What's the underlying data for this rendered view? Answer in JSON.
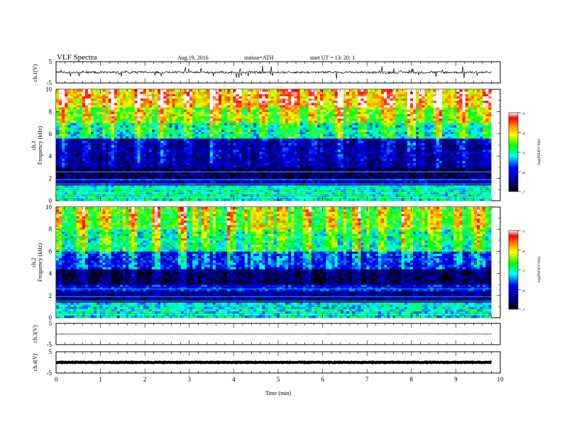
{
  "header": {
    "title": "VLF  Spectra",
    "date": "Aug.19, 2016",
    "station": "station=ATH",
    "start": "start  UT  =   13: 20: 1"
  },
  "chart_data": {
    "type": "heatmap",
    "xlabel": "Time  (min)",
    "xlim": [
      0,
      10
    ],
    "xticks": [
      "0",
      "1",
      "2",
      "3",
      "4",
      "5",
      "6",
      "7",
      "8",
      "9",
      "10"
    ],
    "data_end_min": 9.8,
    "panels": [
      {
        "name": "ch.1(V)",
        "type": "line",
        "ylabel": "ch.1(V)",
        "ylim": [
          -5,
          5
        ],
        "yticks": [
          "5",
          "-5"
        ],
        "baseline": 0,
        "noise_amplitude": 0.5,
        "spike_amplitude": 3
      },
      {
        "name": "ch.1",
        "type": "heatmap",
        "ylabel_channel": "ch.1",
        "ylabel": "Frequency  (kHz)",
        "ylim": [
          0,
          10
        ],
        "yticks": [
          "0",
          "2",
          "4",
          "6",
          "8",
          "10"
        ],
        "colorbar": {
          "label": "log(PSD(V²/Hz)",
          "range": [
            -7,
            -3
          ],
          "ticks": [
            "-3",
            "-4",
            "-5",
            "-6",
            "-7"
          ]
        },
        "bands_khz": [
          [
            0,
            1.5,
            -5.1
          ],
          [
            1.5,
            2.0,
            -6.1
          ],
          [
            2.0,
            3.0,
            -6.6
          ],
          [
            3.0,
            5.6,
            -6.4
          ],
          [
            5.6,
            7.0,
            -5.2
          ],
          [
            7.0,
            8.5,
            -4.6
          ],
          [
            8.5,
            10.0,
            -4.0
          ]
        ]
      },
      {
        "name": "ch.2",
        "type": "heatmap",
        "ylabel_channel": "ch.2",
        "ylabel": "Frequency  (kHz)",
        "ylim": [
          0,
          10
        ],
        "yticks": [
          "0",
          "2",
          "4",
          "6",
          "8",
          "10"
        ],
        "colorbar": {
          "label": "log(PSD(V²/Hz)",
          "range": [
            -7,
            -3
          ],
          "ticks": [
            "-3",
            "-4",
            "-5",
            "-6",
            "-7"
          ]
        },
        "bands_khz": [
          [
            0,
            1.5,
            -5.2
          ],
          [
            1.5,
            2.5,
            -6.4
          ],
          [
            2.5,
            3.0,
            -5.9
          ],
          [
            3.0,
            4.5,
            -6.8
          ],
          [
            4.5,
            6.0,
            -5.9
          ],
          [
            6.0,
            8.0,
            -5.1
          ],
          [
            8.0,
            10.0,
            -4.7
          ]
        ]
      },
      {
        "name": "ch.3(V)",
        "type": "line",
        "ylabel": "ch.3(V)",
        "ylim": [
          -5,
          5
        ],
        "yticks": [
          "5",
          "-5"
        ],
        "baseline": 0,
        "noise_amplitude": 0.02,
        "spike_amplitude": 0
      },
      {
        "name": "ch.4(V)",
        "type": "line",
        "ylabel": "ch.4(V)",
        "ylim": [
          -5,
          5
        ],
        "yticks": [
          "5",
          "-5"
        ],
        "baseline": 0,
        "noise_amplitude": 0.15,
        "spike_amplitude": 0
      }
    ]
  }
}
